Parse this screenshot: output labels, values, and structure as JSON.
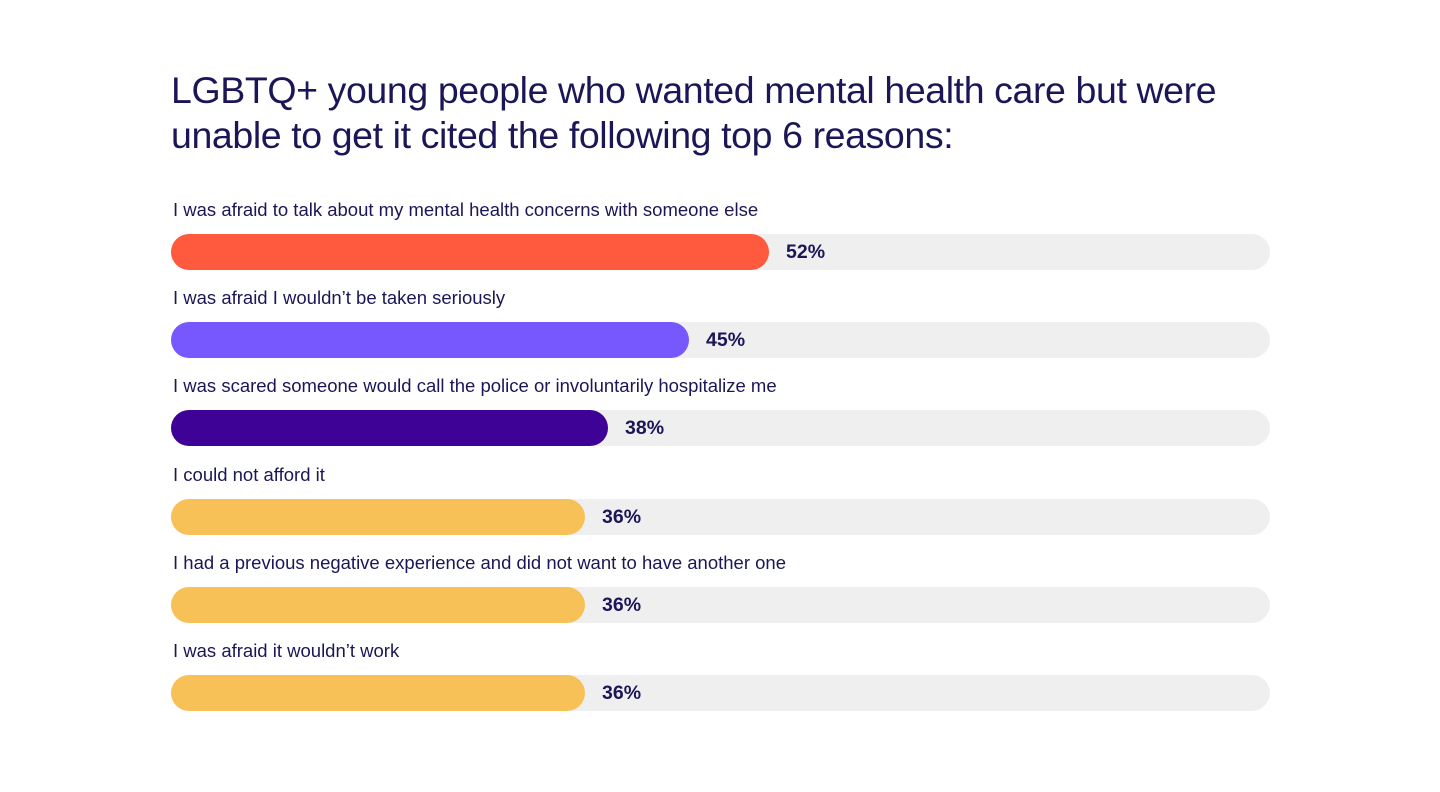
{
  "chart_data": {
    "type": "bar",
    "orientation": "horizontal",
    "title": "LGBTQ+ young people who wanted mental health care but were unable to get it cited the following top 6 reasons:",
    "xlim": [
      0,
      100
    ],
    "grid": false,
    "categories": [
      "I was afraid to talk about my mental health concerns with someone else",
      "I was afraid I wouldn’t be taken seriously",
      "I was scared someone would call the police or involuntarily hospitalize me",
      "I could not afford it",
      "I had a previous negative experience and did not want to have another one",
      "I was afraid it wouldn’t work"
    ],
    "values": [
      52,
      45,
      38,
      36,
      36,
      36
    ],
    "value_labels": [
      "52%",
      "45%",
      "38%",
      "36%",
      "36%",
      "36%"
    ],
    "colors": [
      "#ff5a3d",
      "#7758ff",
      "#3f0297",
      "#f8c158",
      "#f8c158",
      "#f8c158"
    ],
    "track_color": "#efeff0"
  }
}
